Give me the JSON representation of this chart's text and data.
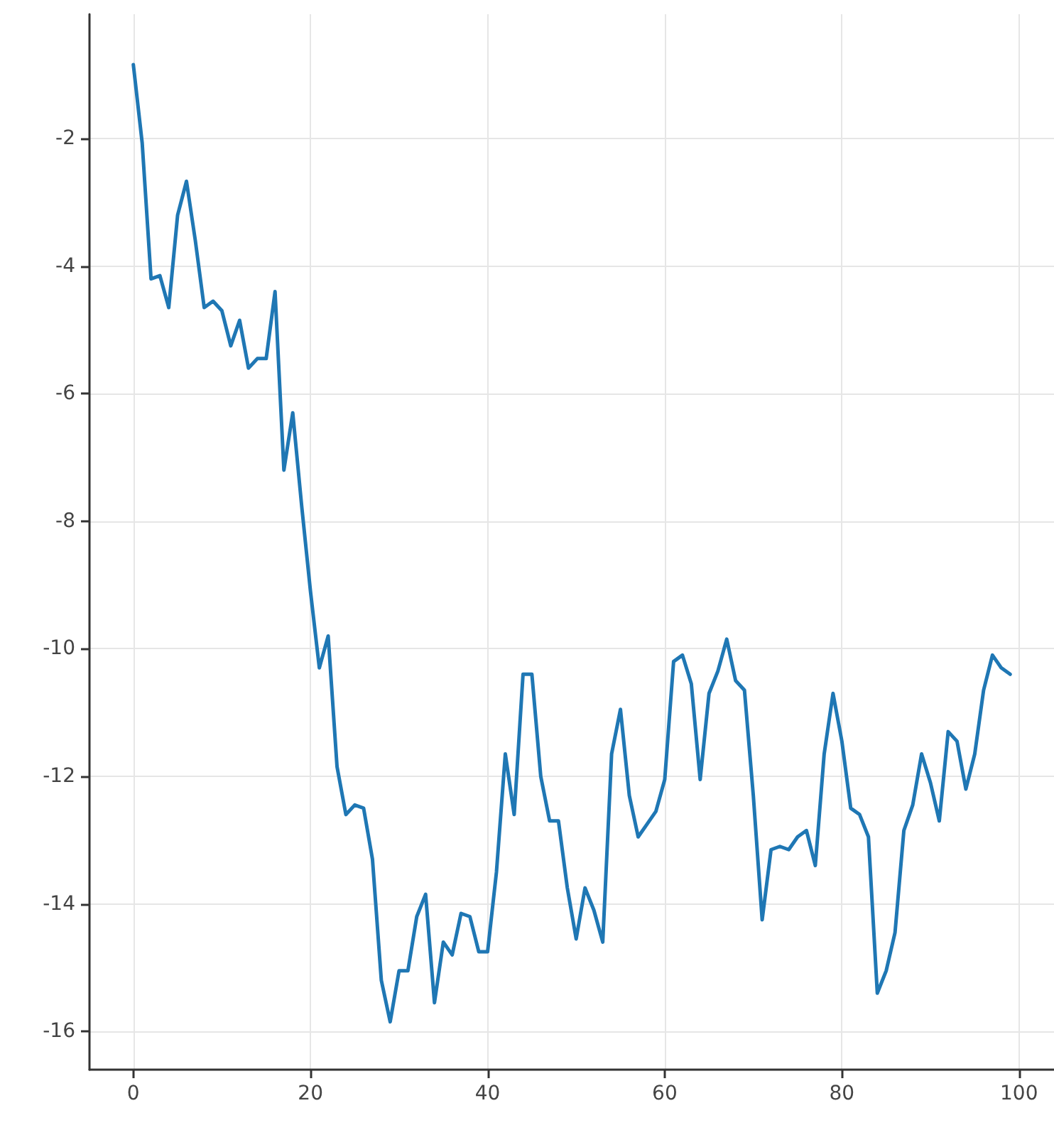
{
  "chart_data": {
    "type": "line",
    "marker": "none",
    "line_style": "solid",
    "grid": true,
    "xlim": [
      -4.95,
      103.95
    ],
    "xticks": [
      0,
      20,
      40,
      60,
      80,
      100
    ],
    "ylim": [
      -16.6,
      -0.05
    ],
    "yticks": [
      -16,
      -14,
      -12,
      -10,
      -8,
      -6,
      -4,
      -2
    ],
    "x": [
      0,
      1,
      2,
      3,
      4,
      5,
      6,
      7,
      8,
      9,
      10,
      11,
      12,
      13,
      14,
      15,
      16,
      17,
      18,
      19,
      20,
      21,
      22,
      23,
      24,
      25,
      26,
      27,
      28,
      29,
      30,
      31,
      32,
      33,
      34,
      35,
      36,
      37,
      38,
      39,
      40,
      41,
      42,
      43,
      44,
      45,
      46,
      47,
      48,
      49,
      50,
      51,
      52,
      53,
      54,
      55,
      56,
      57,
      58,
      59,
      60,
      61,
      62,
      63,
      64,
      65,
      66,
      67,
      68,
      69,
      70,
      71,
      72,
      73,
      74,
      75,
      76,
      77,
      78,
      79,
      80,
      81,
      82,
      83,
      84,
      85,
      86,
      87,
      88,
      89,
      90,
      91,
      92,
      93,
      94,
      95,
      96,
      97,
      98,
      99
    ],
    "series": [
      {
        "color": "#1f77b4",
        "values": [
          -0.84,
          -2.07,
          -4.2,
          -4.15,
          -4.65,
          -3.2,
          -2.67,
          -3.6,
          -4.65,
          -4.55,
          -4.7,
          -5.25,
          -4.85,
          -5.6,
          -5.45,
          -5.45,
          -4.4,
          -7.2,
          -6.3,
          -7.75,
          -9.1,
          -10.3,
          -9.8,
          -11.85,
          -12.6,
          -12.45,
          -12.5,
          -13.3,
          -15.2,
          -15.85,
          -15.05,
          -15.05,
          -14.2,
          -13.85,
          -15.55,
          -14.6,
          -14.8,
          -14.15,
          -14.2,
          -14.75,
          -14.75,
          -13.5,
          -11.65,
          -12.6,
          -10.4,
          -10.4,
          -12.0,
          -12.7,
          -12.7,
          -13.75,
          -14.55,
          -13.75,
          -14.1,
          -14.6,
          -11.65,
          -10.95,
          -12.3,
          -12.95,
          -12.75,
          -12.55,
          -12.05,
          -10.2,
          -10.1,
          -10.55,
          -12.05,
          -10.7,
          -10.35,
          -9.85,
          -10.5,
          -10.65,
          -12.3,
          -14.25,
          -13.15,
          -13.1,
          -13.15,
          -12.95,
          -12.85,
          -13.4,
          -11.65,
          -10.7,
          -11.45,
          -12.5,
          -12.6,
          -12.95,
          -15.4,
          -15.05,
          -14.45,
          -12.85,
          -12.45,
          -11.65,
          -12.1,
          -12.7,
          -11.3,
          -11.45,
          -12.2,
          -11.65,
          -10.65,
          -10.1,
          -10.3,
          -10.4
        ]
      }
    ]
  }
}
